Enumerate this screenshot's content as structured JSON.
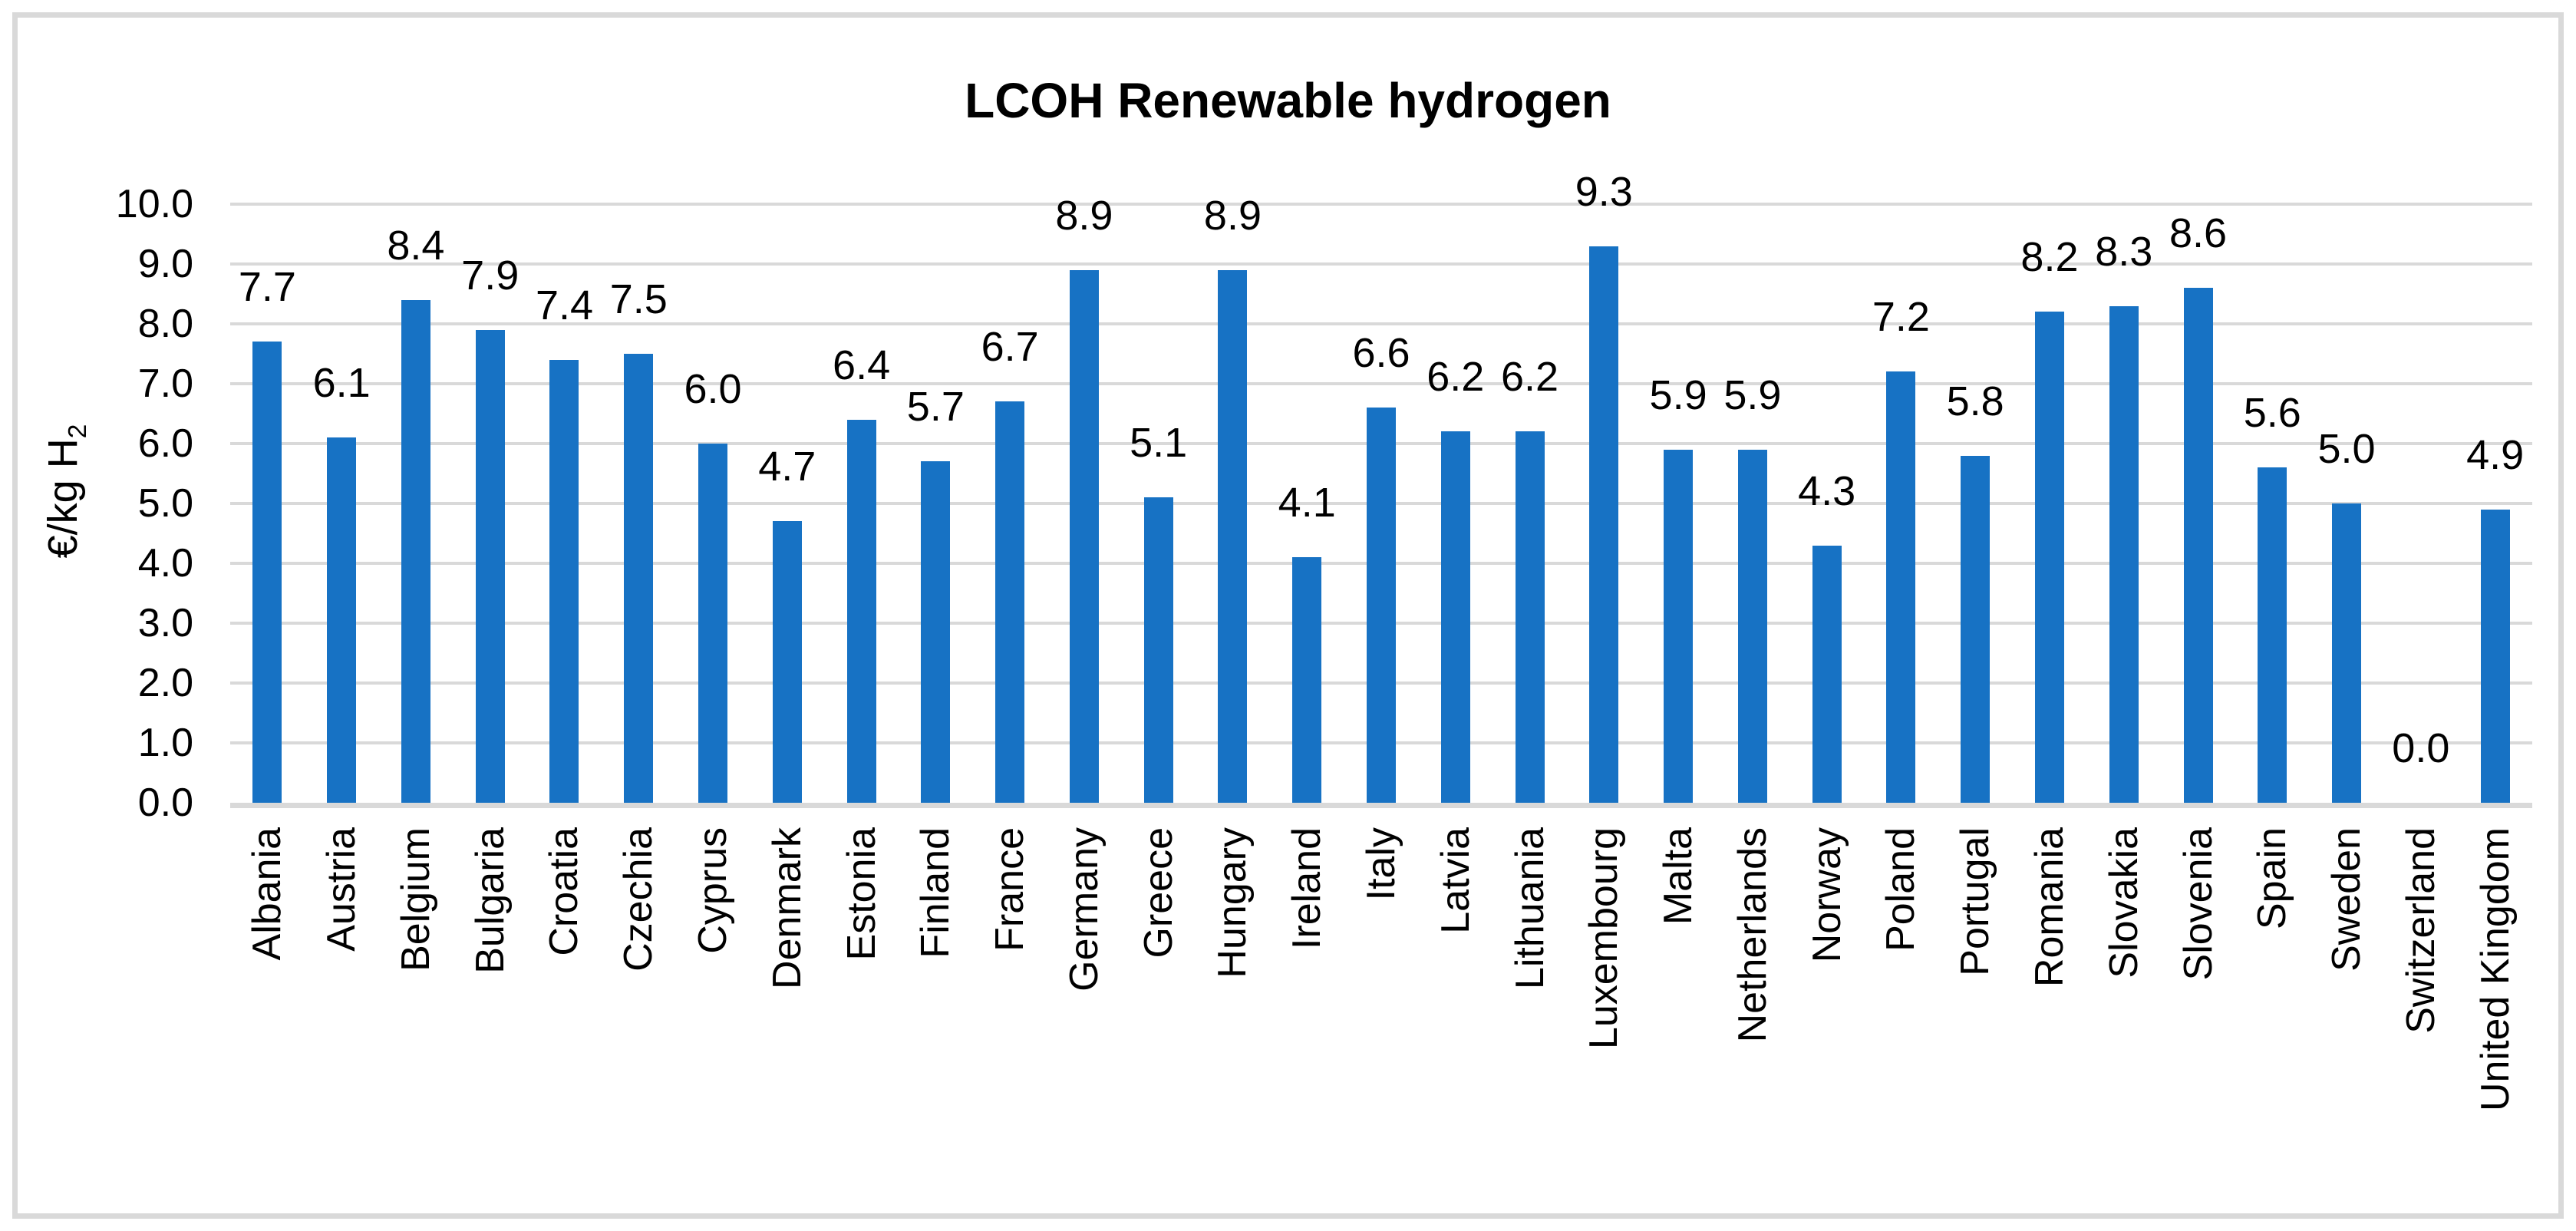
{
  "chart_data": {
    "type": "bar",
    "title": "LCOH Renewable hydrogen",
    "ylabel_main": "€/kg H",
    "ylabel_sub": "2",
    "xlabel": "",
    "categories": [
      "Albania",
      "Austria",
      "Belgium",
      "Bulgaria",
      "Croatia",
      "Czechia",
      "Cyprus",
      "Denmark",
      "Estonia",
      "Finland",
      "France",
      "Germany",
      "Greece",
      "Hungary",
      "Ireland",
      "Italy",
      "Latvia",
      "Lithuania",
      "Luxembourg",
      "Malta",
      "Netherlands",
      "Norway",
      "Poland",
      "Portugal",
      "Romania",
      "Slovakia",
      "Slovenia",
      "Spain",
      "Sweden",
      "Switzerland",
      "United Kingdom"
    ],
    "values": [
      7.7,
      6.1,
      8.4,
      7.9,
      7.4,
      7.5,
      6.0,
      4.7,
      6.4,
      5.7,
      6.7,
      8.9,
      5.1,
      8.9,
      4.1,
      6.6,
      6.2,
      6.2,
      9.3,
      5.9,
      5.9,
      4.3,
      7.2,
      5.8,
      8.2,
      8.3,
      8.6,
      5.6,
      5.0,
      0.0,
      4.9
    ],
    "value_label_decimals": 1,
    "ylim": [
      0.0,
      10.0
    ],
    "ytick_labels": [
      "0.0",
      "1.0",
      "2.0",
      "3.0",
      "4.0",
      "5.0",
      "6.0",
      "7.0",
      "8.0",
      "9.0",
      "10.0"
    ],
    "grid": "horizontal",
    "legend": "none",
    "bar_color": "#1772C4",
    "gridline_color": "#D9D9D9",
    "axis_line_color": "#D9D9D9",
    "text_color": "#000000",
    "background_color": "#FFFFFF",
    "frame_color": "#D9D9D9"
  }
}
